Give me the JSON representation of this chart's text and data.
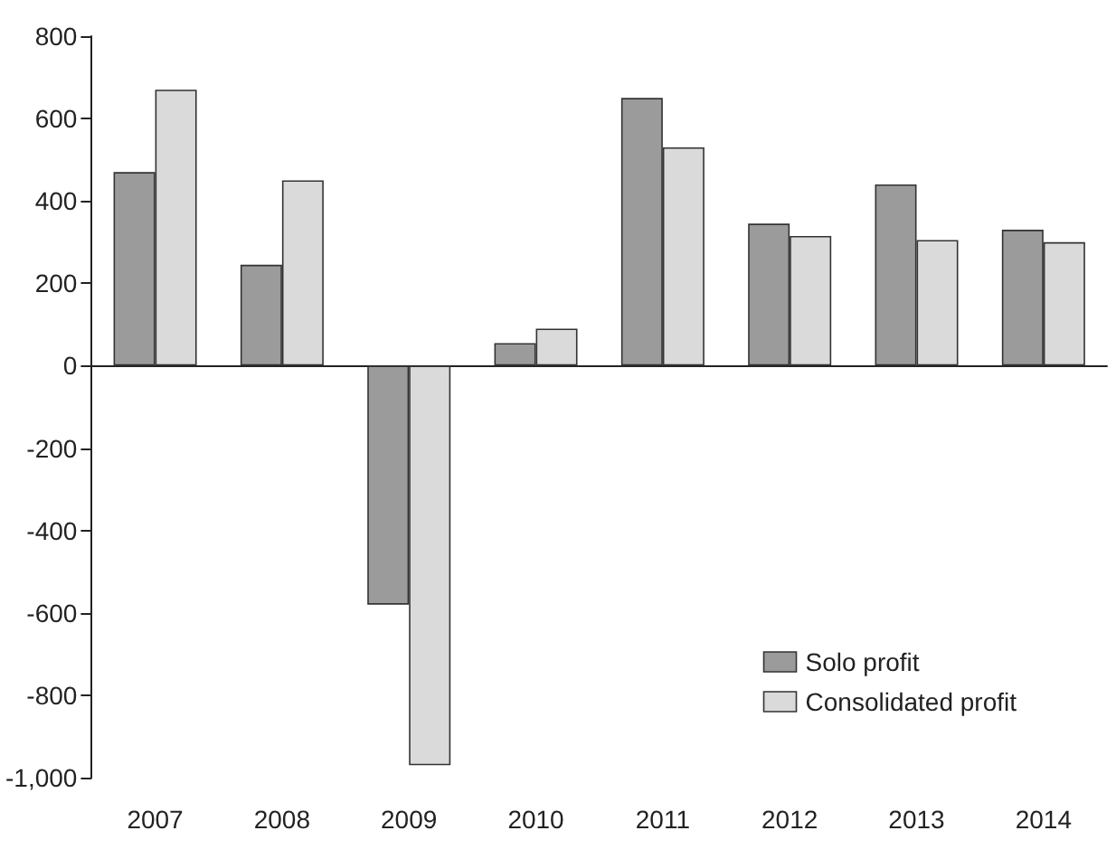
{
  "chart_data": {
    "type": "bar",
    "categories": [
      "2007",
      "2008",
      "2009",
      "2010",
      "2011",
      "2012",
      "2013",
      "2014"
    ],
    "series": [
      {
        "name": "Solo profit",
        "color": "#9b9b9b",
        "values": [
          470,
          245,
          -580,
          55,
          650,
          345,
          440,
          330
        ]
      },
      {
        "name": "Consolidated profit",
        "color": "#dadada",
        "values": [
          670,
          450,
          -970,
          90,
          530,
          315,
          305,
          300
        ]
      }
    ],
    "ylim": [
      -1000,
      800
    ],
    "yticks": [
      {
        "value": -1000,
        "label": "-1,000"
      },
      -800,
      -600,
      -400,
      -200,
      0,
      200,
      400,
      600,
      800
    ],
    "legend": "bottom right"
  }
}
